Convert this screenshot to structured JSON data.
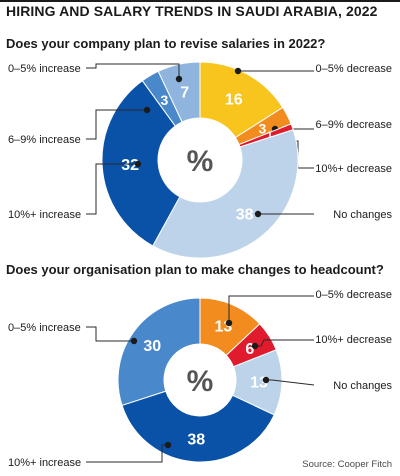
{
  "header": {
    "title": "HIRING AND SALARY TRENDS IN SAUDI ARABIA, 2022"
  },
  "source": "Source: Cooper Fitch",
  "chart_data": [
    {
      "type": "pie",
      "title": "Does your company plan to revise salaries in 2022?",
      "center_label": "%",
      "slices": [
        {
          "label": "0–5% decrease",
          "value": 16,
          "color": "#f7c51e",
          "value_color": "#ffffff"
        },
        {
          "label": "6–9% decrease",
          "value": 3,
          "color": "#f28c1e",
          "value_color": "#ffffff"
        },
        {
          "label": "10%+ decrease",
          "value": 1,
          "color": "#e01b2e",
          "value_color": "#ffffff"
        },
        {
          "label": "No changes",
          "value": 38,
          "color": "#bcd3ea",
          "value_color": "#ffffff"
        },
        {
          "label": "10%+ increase",
          "value": 32,
          "color": "#0a52a8",
          "value_color": "#ffffff"
        },
        {
          "label": "6–9% increase",
          "value": 3,
          "color": "#4a88cc",
          "value_color": "#ffffff"
        },
        {
          "label": "0–5% increase",
          "value": 7,
          "color": "#8fb4de",
          "value_color": "#ffffff"
        }
      ]
    },
    {
      "type": "pie",
      "title": "Does your organisation plan to make changes to headcount?",
      "center_label": "%",
      "slices": [
        {
          "label": "0–5% decrease",
          "value": 13,
          "color": "#f28c1e",
          "value_color": "#ffffff"
        },
        {
          "label": "10%+ decrease",
          "value": 6,
          "color": "#e01b2e",
          "value_color": "#ffffff"
        },
        {
          "label": "No changes",
          "value": 13,
          "color": "#bcd3ea",
          "value_color": "#ffffff"
        },
        {
          "label": "10%+ increase",
          "value": 38,
          "color": "#0a52a8",
          "value_color": "#ffffff"
        },
        {
          "label": "0–5% increase",
          "value": 30,
          "color": "#4a88cc",
          "value_color": "#ffffff"
        }
      ]
    }
  ]
}
